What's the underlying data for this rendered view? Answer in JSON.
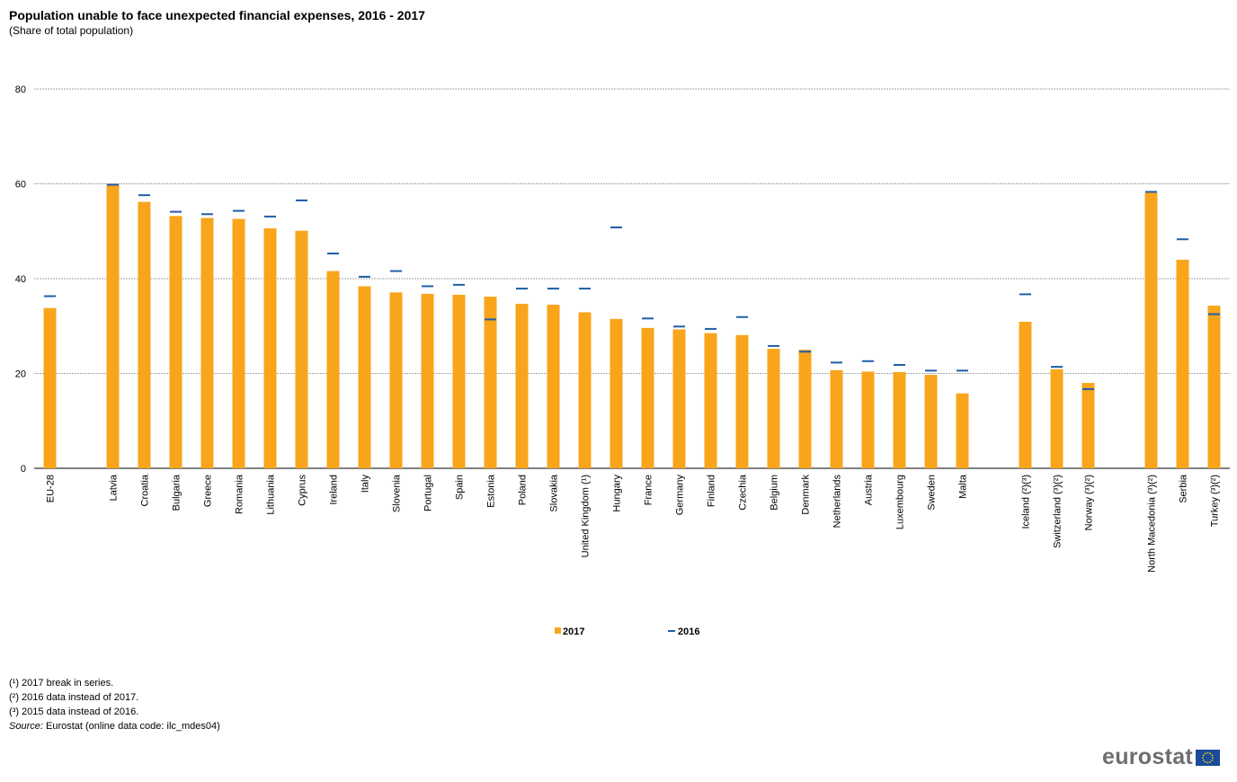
{
  "title": "Population unable to face unexpected financial expenses, 2016 - 2017",
  "subtitle": "(Share  of total population)",
  "chart_data": {
    "type": "bar",
    "categories": [
      "EU-28",
      "",
      "Latvia",
      "Croatia",
      "Bulgaria",
      "Greece",
      "Romania",
      "Lithuania",
      "Cyprus",
      "Ireland",
      "Italy",
      "Slovenia",
      "Portugal",
      "Spain",
      "Estonia",
      "Poland",
      "Slovakia",
      "United Kingdom (¹)",
      "Hungary",
      "France",
      "Germany",
      "Finland",
      "Czechia",
      "Belgium",
      "Denmark",
      "Netherlands",
      "Austria",
      "Luxembourg",
      "Sweden",
      "Malta",
      "",
      "Iceland (²)(³)",
      "Switzerland (³)(²)",
      "Norway (³)(²)",
      "",
      "North Macedonia (³)(²)",
      "Serbia",
      "Turkey  (³)(²)"
    ],
    "series": [
      {
        "name": "2017",
        "type": "bar",
        "color": "#f8a51c",
        "values": [
          33.8,
          null,
          60.0,
          56.2,
          53.2,
          52.8,
          52.6,
          50.6,
          50.1,
          41.6,
          38.4,
          37.1,
          36.8,
          36.6,
          36.2,
          34.7,
          34.5,
          32.9,
          31.5,
          29.6,
          29.3,
          28.5,
          28.1,
          25.2,
          25.0,
          20.7,
          20.4,
          20.3,
          19.7,
          15.8,
          null,
          30.9,
          20.9,
          18.0,
          null,
          58.1,
          44.0,
          34.3
        ]
      },
      {
        "name": "2016",
        "type": "marker",
        "color": "#1f5ea8",
        "values": [
          36.3,
          null,
          59.8,
          57.6,
          54.1,
          53.6,
          54.3,
          53.1,
          56.5,
          45.3,
          40.4,
          41.6,
          38.4,
          38.7,
          31.4,
          37.9,
          37.9,
          37.9,
          50.8,
          31.6,
          29.9,
          29.4,
          31.9,
          25.8,
          24.6,
          22.3,
          22.6,
          21.8,
          20.6,
          20.6,
          null,
          36.7,
          21.4,
          16.7,
          null,
          58.3,
          48.3,
          32.5
        ]
      }
    ],
    "ylim": [
      0,
      80
    ],
    "yticks": [
      0,
      20,
      40,
      60,
      80
    ],
    "grid": true,
    "legend": "bottom-center",
    "xlabel": "",
    "ylabel": ""
  },
  "legend": {
    "label_2017": "2017",
    "label_2016": "2016"
  },
  "notes": [
    "(¹) 2017 break in series.",
    "(²) 2016 data instead of 2017.",
    "(³) 2015 data instead of 2016."
  ],
  "source": {
    "label": "Source:",
    "text": "Eurostat (online data code: ilc_mdes04)"
  },
  "logo": {
    "text": "eurostat"
  }
}
